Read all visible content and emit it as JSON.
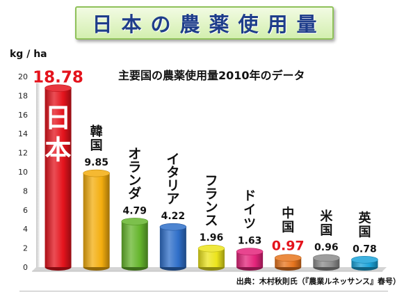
{
  "header": {
    "title": "日本の農薬使用量"
  },
  "chart_data": {
    "type": "bar",
    "title": "日本の農薬使用量",
    "subtitle": "主要国の農薬使用量2010年のデータ",
    "ylabel": "kg / ha",
    "xlabel": "",
    "ylim": [
      0,
      20
    ],
    "yticks": [
      0,
      2,
      4,
      6,
      8,
      10,
      12,
      14,
      16,
      18,
      20
    ],
    "grid": false,
    "source": "出典：木村秋則氏（『農業ルネッサンス』春号）",
    "bars": [
      {
        "label": "日本",
        "value": 18.78,
        "value_label": "18.78",
        "color": "#e4131c",
        "highlight": true
      },
      {
        "label": "韓国",
        "value": 9.85,
        "value_label": "9.85",
        "color": "#f3ad0e",
        "highlight": false
      },
      {
        "label": "オランダ",
        "value": 4.79,
        "value_label": "4.79",
        "color": "#65b52c",
        "highlight": false
      },
      {
        "label": "イタリア",
        "value": 4.22,
        "value_label": "4.22",
        "color": "#2f6fc9",
        "highlight": false
      },
      {
        "label": "フランス",
        "value": 1.96,
        "value_label": "1.96",
        "color": "#ece41c",
        "highlight": false
      },
      {
        "label": "ドイツ",
        "value": 1.63,
        "value_label": "1.63",
        "color": "#e4247b",
        "highlight": false
      },
      {
        "label": "中国",
        "value": 0.97,
        "value_label": "0.97",
        "color": "#e8751e",
        "highlight": true
      },
      {
        "label": "米国",
        "value": 0.96,
        "value_label": "0.96",
        "color": "#8c8c8c",
        "highlight": false
      },
      {
        "label": "英国",
        "value": 0.78,
        "value_label": "0.78",
        "color": "#1ba3d9",
        "highlight": false
      }
    ]
  }
}
